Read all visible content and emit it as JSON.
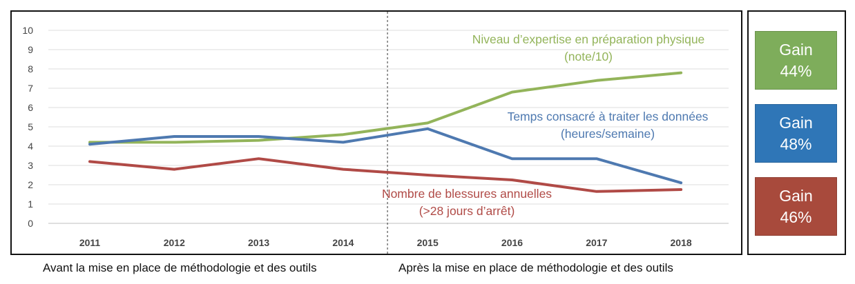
{
  "chart_data": {
    "type": "line",
    "x": [
      "2011",
      "2012",
      "2013",
      "2014",
      "2015",
      "2016",
      "2017",
      "2018"
    ],
    "ylim": [
      0,
      10
    ],
    "yticks": [
      "0",
      "1",
      "2",
      "3",
      "4",
      "5",
      "6",
      "7",
      "8",
      "9",
      "10"
    ],
    "grid": true,
    "divider_between": [
      "2014",
      "2015"
    ],
    "series": [
      {
        "name_lines": [
          "Niveau d’expertise en préparation physique",
          "(note/10)"
        ],
        "color": "#93B45A",
        "values": [
          4.2,
          4.2,
          4.3,
          4.6,
          5.2,
          6.8,
          7.4,
          7.8
        ]
      },
      {
        "name_lines": [
          "Temps consacré à traiter les données",
          "(heures/semaine)"
        ],
        "color": "#4E79B0",
        "values": [
          4.1,
          4.5,
          4.5,
          4.2,
          4.9,
          3.35,
          3.35,
          2.1
        ]
      },
      {
        "name_lines": [
          "Nombre de blessures annuelles",
          "(>28 jours d’arrêt)"
        ],
        "color": "#B04A46",
        "values": [
          3.2,
          2.8,
          3.35,
          2.8,
          2.5,
          2.25,
          1.65,
          1.75
        ]
      }
    ]
  },
  "captions": {
    "before": "Avant la mise en place de méthodologie et des outils",
    "after": "Après la mise en place de méthodologie et des outils"
  },
  "gains": [
    {
      "label": "Gain",
      "value": "44%",
      "color": "#7EAD5B"
    },
    {
      "label": "Gain",
      "value": "48%",
      "color": "#2F76B7"
    },
    {
      "label": "Gain",
      "value": "46%",
      "color": "#A84A3C"
    }
  ]
}
